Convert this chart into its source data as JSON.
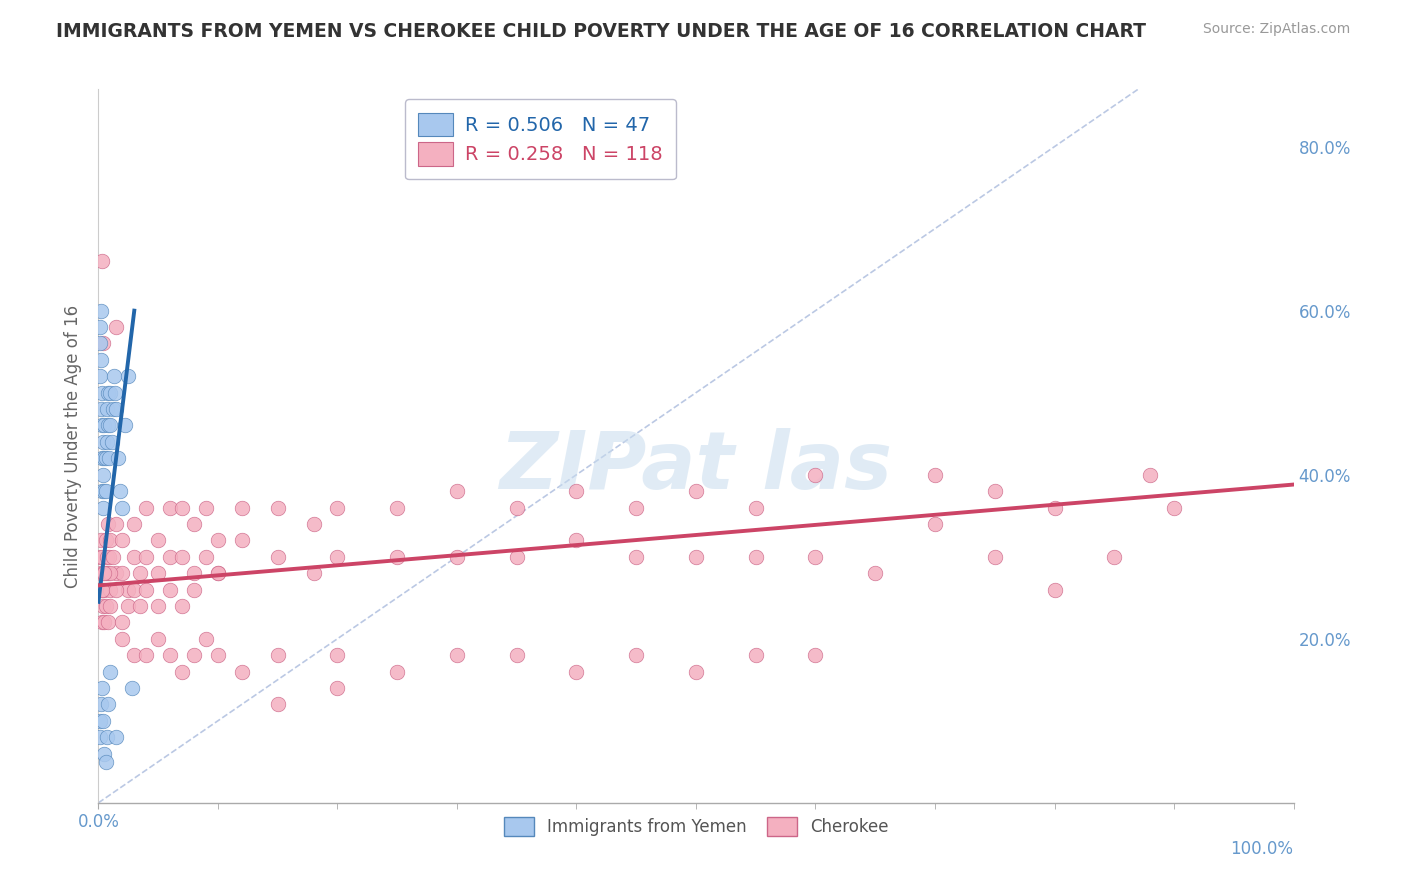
{
  "title": "IMMIGRANTS FROM YEMEN VS CHEROKEE CHILD POVERTY UNDER THE AGE OF 16 CORRELATION CHART",
  "source": "Source: ZipAtlas.com",
  "ylabel": "Child Poverty Under the Age of 16",
  "legend_labels": [
    "Immigrants from Yemen",
    "Cherokee"
  ],
  "blue_R": 0.506,
  "blue_N": 47,
  "pink_R": 0.258,
  "pink_N": 118,
  "blue_dot_face": "#A8C8EE",
  "blue_dot_edge": "#5588BB",
  "pink_dot_face": "#F4B0C0",
  "pink_dot_edge": "#CC6688",
  "blue_line_color": "#2266AA",
  "pink_line_color": "#CC4466",
  "diag_line_color": "#AABBDD",
  "grid_color": "#DDDDEE",
  "title_color": "#333333",
  "axis_tick_color": "#6699CC",
  "ylabel_color": "#666666",
  "watermark_color": "#C8DCEE",
  "blue_scatter_x": [
    0.1,
    0.1,
    0.15,
    0.2,
    0.2,
    0.25,
    0.3,
    0.3,
    0.3,
    0.3,
    0.4,
    0.4,
    0.4,
    0.5,
    0.5,
    0.5,
    0.6,
    0.6,
    0.7,
    0.7,
    0.8,
    0.8,
    0.9,
    1.0,
    1.0,
    1.1,
    1.2,
    1.3,
    1.4,
    1.5,
    1.6,
    1.8,
    2.0,
    2.2,
    2.5,
    0.1,
    0.15,
    0.2,
    0.3,
    0.4,
    0.5,
    0.6,
    0.7,
    0.8,
    1.0,
    1.5,
    2.8
  ],
  "blue_scatter_y": [
    56,
    52,
    58,
    54,
    48,
    60,
    42,
    46,
    50,
    38,
    36,
    40,
    44,
    38,
    42,
    46,
    42,
    38,
    48,
    44,
    50,
    46,
    42,
    46,
    50,
    44,
    48,
    52,
    50,
    48,
    42,
    38,
    36,
    46,
    52,
    10,
    8,
    12,
    14,
    10,
    6,
    5,
    8,
    12,
    16,
    8,
    14
  ],
  "pink_scatter_x": [
    0.1,
    0.15,
    0.2,
    0.2,
    0.3,
    0.3,
    0.3,
    0.4,
    0.4,
    0.5,
    0.5,
    0.6,
    0.6,
    0.7,
    0.8,
    0.8,
    0.9,
    1.0,
    1.0,
    1.2,
    1.5,
    1.5,
    2.0,
    2.0,
    2.5,
    3.0,
    3.0,
    3.5,
    4.0,
    4.0,
    5.0,
    5.0,
    6.0,
    6.0,
    7.0,
    7.0,
    8.0,
    8.0,
    9.0,
    9.0,
    10.0,
    10.0,
    12.0,
    12.0,
    15.0,
    15.0,
    18.0,
    18.0,
    20.0,
    20.0,
    25.0,
    25.0,
    30.0,
    30.0,
    35.0,
    35.0,
    40.0,
    40.0,
    45.0,
    45.0,
    50.0,
    50.0,
    55.0,
    55.0,
    60.0,
    60.0,
    65.0,
    70.0,
    70.0,
    75.0,
    75.0,
    80.0,
    80.0,
    85.0,
    88.0,
    90.0,
    0.3,
    0.4,
    1.0,
    1.5,
    2.0,
    3.0,
    4.0,
    5.0,
    6.0,
    7.0,
    8.0,
    9.0,
    10.0,
    12.0,
    15.0,
    20.0,
    25.0,
    30.0,
    35.0,
    40.0,
    45.0,
    50.0,
    55.0,
    60.0,
    0.3,
    0.5,
    0.6,
    0.8,
    1.0,
    1.5,
    2.0,
    2.5,
    3.0,
    3.5,
    4.0,
    5.0,
    6.0,
    7.0,
    8.0,
    10.0,
    15.0,
    20.0
  ],
  "pink_scatter_y": [
    26,
    30,
    28,
    32,
    22,
    26,
    30,
    24,
    28,
    22,
    26,
    28,
    32,
    30,
    28,
    34,
    30,
    26,
    32,
    30,
    28,
    34,
    28,
    32,
    26,
    30,
    34,
    28,
    30,
    36,
    28,
    32,
    30,
    36,
    30,
    36,
    28,
    34,
    30,
    36,
    28,
    32,
    32,
    36,
    30,
    36,
    28,
    34,
    30,
    36,
    30,
    36,
    30,
    38,
    30,
    36,
    32,
    38,
    30,
    36,
    30,
    38,
    30,
    36,
    30,
    40,
    28,
    34,
    40,
    30,
    38,
    26,
    36,
    30,
    40,
    36,
    66,
    56,
    28,
    58,
    20,
    18,
    18,
    20,
    18,
    16,
    18,
    20,
    18,
    16,
    18,
    18,
    16,
    18,
    18,
    16,
    18,
    16,
    18,
    18,
    26,
    28,
    24,
    22,
    24,
    26,
    22,
    24,
    26,
    24,
    26,
    24,
    26,
    24,
    26,
    28,
    12,
    14
  ],
  "xlim": [
    0.0,
    100.0
  ],
  "ylim": [
    0.0,
    87.0
  ],
  "xtick_left_label": "0.0%",
  "xtick_right_label": "100.0%",
  "ytick_labels_right": [
    "20.0%",
    "40.0%",
    "60.0%",
    "80.0%"
  ],
  "ytick_vals": [
    20,
    40,
    60,
    80
  ],
  "blue_trend_x": [
    0.0,
    3.0
  ],
  "blue_trend_y": [
    24.5,
    60.0
  ],
  "pink_trend_x": [
    0.0,
    100.0
  ],
  "pink_trend_y": [
    26.5,
    38.8
  ],
  "figsize": [
    14.06,
    8.92
  ],
  "dpi": 100
}
